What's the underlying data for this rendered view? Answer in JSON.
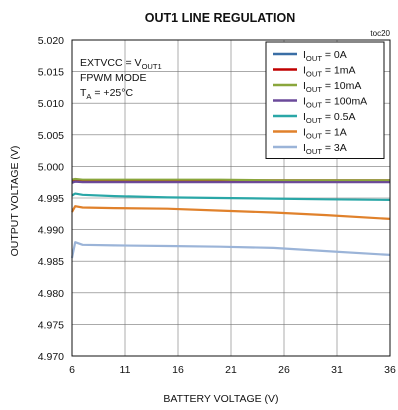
{
  "chart_data": {
    "type": "line",
    "title": "OUT1 LINE REGULATION",
    "tag": "toc20",
    "xlabel": "BATTERY VOLTAGE (V)",
    "ylabel": "OUTPUT VOLTAGE (V)",
    "xlim": [
      6,
      36
    ],
    "ylim": [
      4.97,
      5.02
    ],
    "xticks": [
      6,
      11,
      16,
      21,
      26,
      31,
      36
    ],
    "yticks": [
      "4.970",
      "4.975",
      "4.980",
      "4.985",
      "4.990",
      "4.995",
      "5.000",
      "5.005",
      "5.010",
      "5.015",
      "5.020"
    ],
    "grid": true,
    "legend_position": "top-right",
    "conditions": [
      {
        "base": "EXTVCC = V",
        "sub": "OUT1"
      },
      {
        "base": "FPWM MODE",
        "sub": ""
      },
      {
        "base": "T",
        "sub": "A",
        "suffix": " = +25°C"
      }
    ],
    "series": [
      {
        "label_base": "I",
        "label_sub": "OUT",
        "label_suffix": " = 0A",
        "color": "#3a6ea5",
        "x": [
          6,
          6.3,
          7,
          10,
          15,
          20,
          25,
          30,
          36
        ],
        "y": [
          4.9978,
          4.9978,
          4.9977,
          4.9977,
          4.9977,
          4.9977,
          4.9977,
          4.9977,
          4.9977
        ]
      },
      {
        "label_base": "I",
        "label_sub": "OUT",
        "label_suffix": " = 1mA",
        "color": "#c00000",
        "x": [
          6,
          6.3,
          7,
          10,
          15,
          20,
          25,
          30,
          36
        ],
        "y": [
          4.9978,
          4.9979,
          4.9978,
          4.9978,
          4.9978,
          4.9978,
          4.9978,
          4.9978,
          4.9978
        ]
      },
      {
        "label_base": "I",
        "label_sub": "OUT",
        "label_suffix": " = 10mA",
        "color": "#8aa63c",
        "x": [
          6,
          6.3,
          7,
          10,
          15,
          20,
          25,
          30,
          36
        ],
        "y": [
          4.9979,
          4.998,
          4.9979,
          4.9979,
          4.9979,
          4.9979,
          4.9978,
          4.9978,
          4.9978
        ]
      },
      {
        "label_base": "I",
        "label_sub": "OUT",
        "label_suffix": " = 100mA",
        "color": "#6b4a9a",
        "x": [
          6,
          6.3,
          7,
          10,
          15,
          20,
          25,
          30,
          36
        ],
        "y": [
          4.9974,
          4.9976,
          4.9975,
          4.9975,
          4.9975,
          4.9975,
          4.9975,
          4.9975,
          4.9975
        ]
      },
      {
        "label_base": "I",
        "label_sub": "OUT",
        "label_suffix": " = 0.5A",
        "color": "#2aa7a7",
        "x": [
          6,
          6.3,
          7,
          10,
          15,
          20,
          25,
          30,
          36
        ],
        "y": [
          4.9954,
          4.9957,
          4.9955,
          4.9953,
          4.9951,
          4.995,
          4.9949,
          4.9948,
          4.9947
        ]
      },
      {
        "label_base": "I",
        "label_sub": "OUT",
        "label_suffix": " = 1A",
        "color": "#e0812b",
        "x": [
          6,
          6.3,
          7,
          10,
          15,
          20,
          25,
          30,
          36
        ],
        "y": [
          4.9928,
          4.9937,
          4.9935,
          4.9934,
          4.9933,
          4.993,
          4.9927,
          4.9923,
          4.9917
        ]
      },
      {
        "label_base": "I",
        "label_sub": "OUT",
        "label_suffix": " = 3A",
        "color": "#9bb4d8",
        "x": [
          6,
          6.3,
          7,
          10,
          15,
          20,
          25,
          30,
          36
        ],
        "y": [
          4.9855,
          4.988,
          4.9876,
          4.9875,
          4.9874,
          4.9873,
          4.9871,
          4.9866,
          4.986
        ]
      }
    ]
  }
}
